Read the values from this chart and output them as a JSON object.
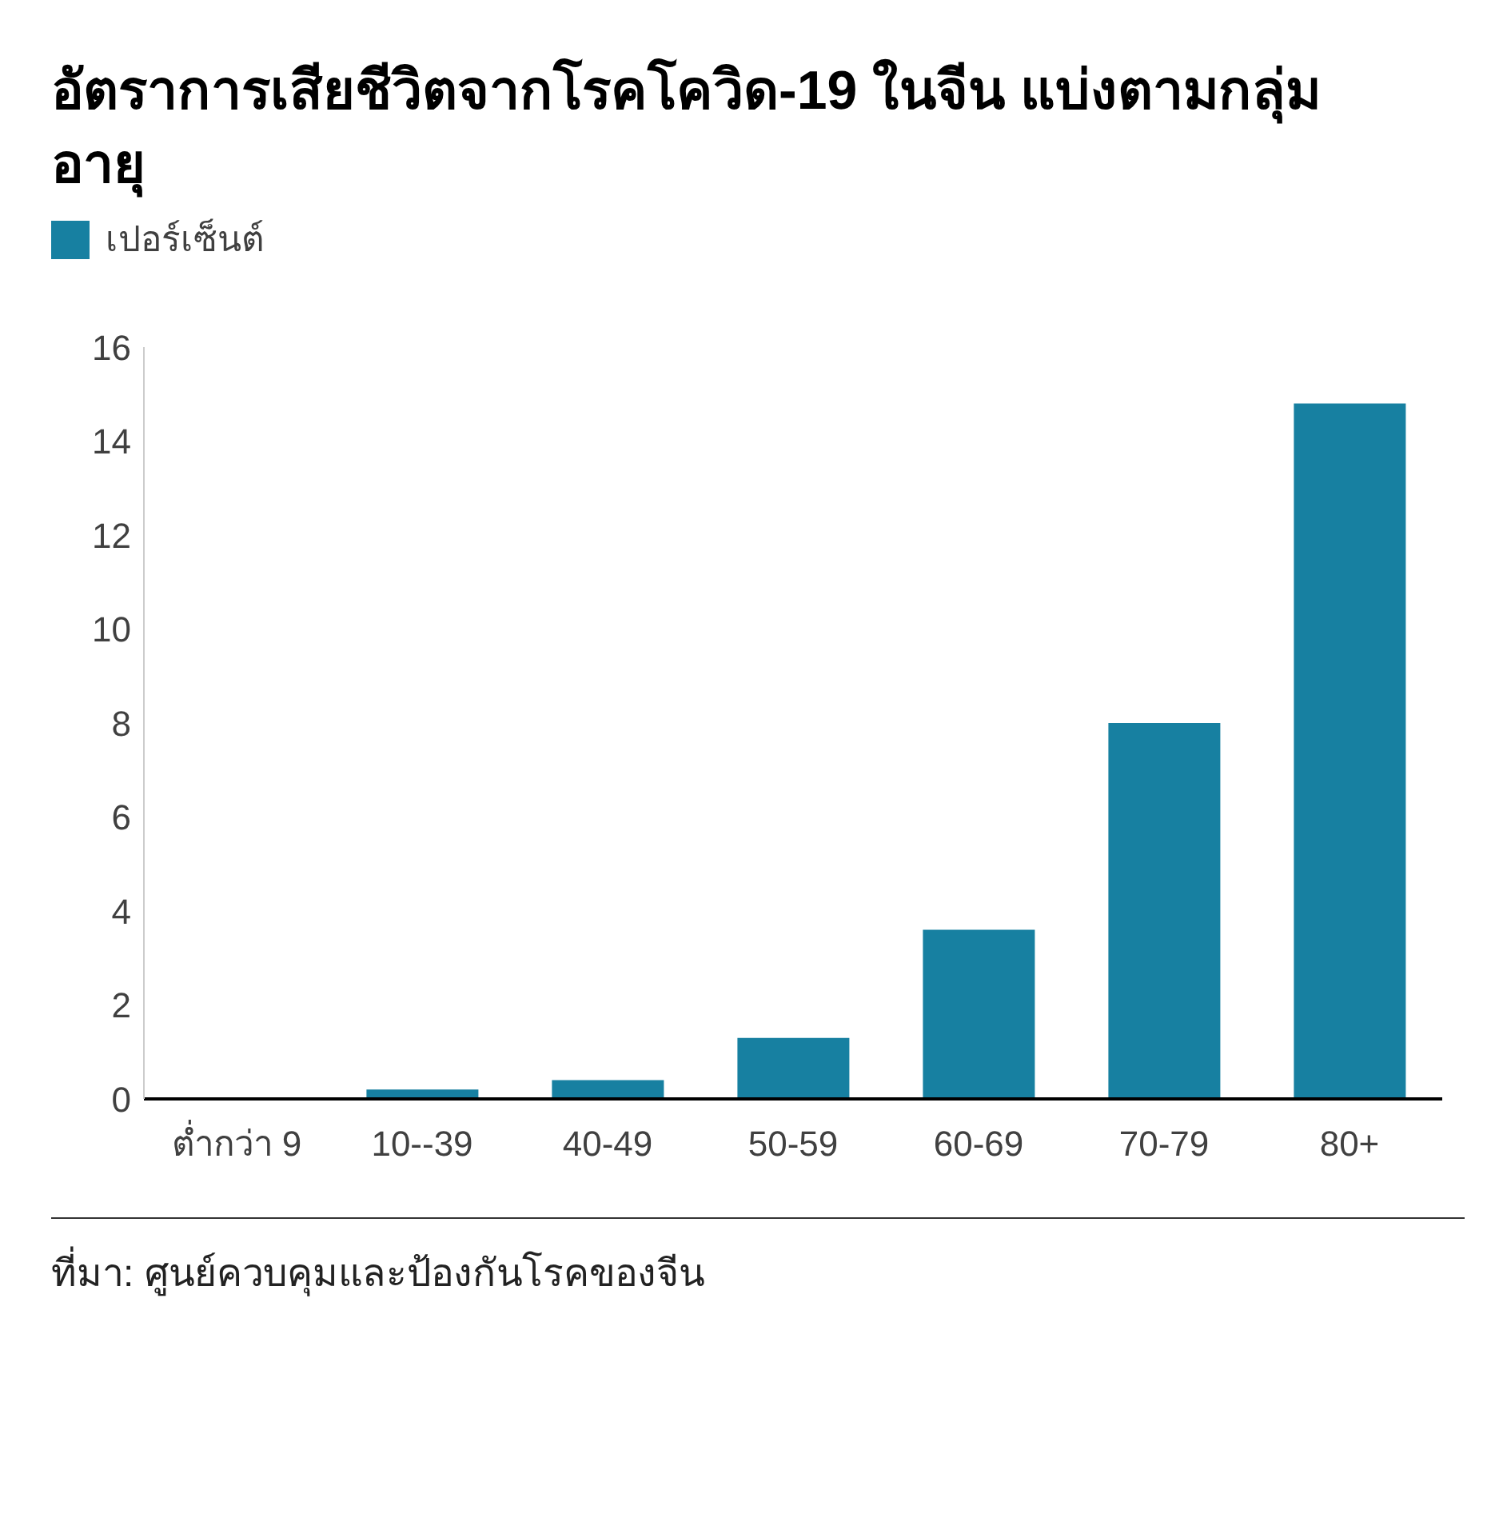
{
  "chart_data": {
    "type": "bar",
    "title": "อัตราการเสียชีวิตจากโรคโควิด-19 ในจีน แบ่งตามกลุ่มอายุ",
    "categories": [
      "ต่ำกว่า 9",
      "10--39",
      "40-49",
      "50-59",
      "60-69",
      "70-79",
      "80+"
    ],
    "series": [
      {
        "name": "เปอร์เซ็นต์",
        "color": "#1780a1",
        "values": [
          0,
          0.2,
          0.4,
          1.3,
          3.6,
          8.0,
          14.8
        ]
      }
    ],
    "ylim": [
      0,
      16
    ],
    "yticks": [
      0,
      2,
      4,
      6,
      8,
      10,
      12,
      14,
      16
    ],
    "grid": false,
    "legend": "top left",
    "annotations": [
      "ที่มา: ศูนย์ควบคุมและป้องกันโรคของจีน"
    ]
  }
}
